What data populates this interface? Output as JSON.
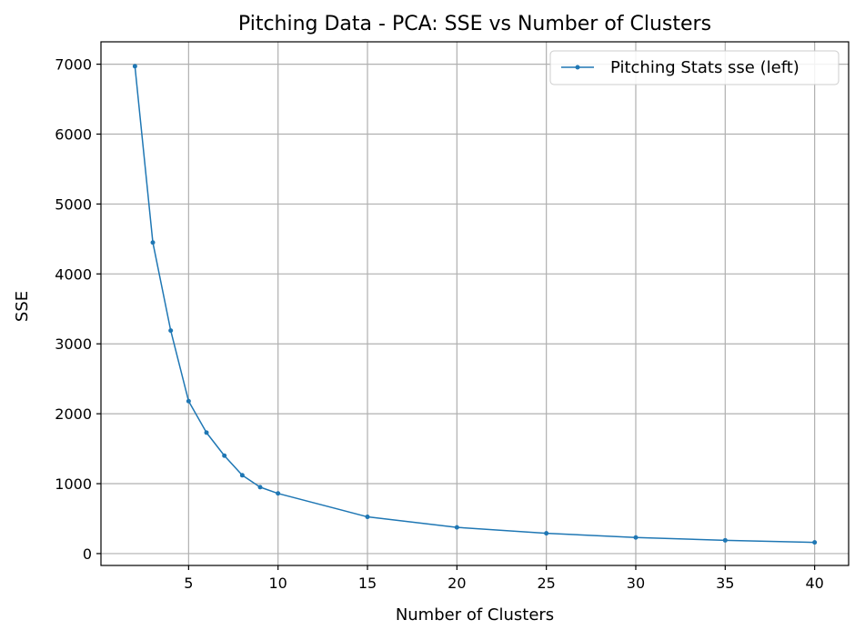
{
  "chart_data": {
    "type": "line",
    "title": "Pitching Data - PCA: SSE vs Number of Clusters",
    "xlabel": "Number of Clusters",
    "ylabel": "SSE",
    "xlim": [
      0.1,
      41.9
    ],
    "ylim": [
      -170,
      7320
    ],
    "xticks": [
      5,
      10,
      15,
      20,
      25,
      30,
      35,
      40
    ],
    "yticks": [
      0,
      1000,
      2000,
      3000,
      4000,
      5000,
      6000,
      7000
    ],
    "grid": true,
    "legend_position": "top-right",
    "series": [
      {
        "name": "Pitching Stats sse (left)",
        "color": "#1f77b4",
        "marker": "point",
        "x": [
          2,
          3,
          4,
          5,
          6,
          7,
          8,
          9,
          10,
          15,
          20,
          25,
          30,
          35,
          40
        ],
        "y": [
          6970,
          4450,
          3190,
          2180,
          1730,
          1400,
          1120,
          950,
          860,
          525,
          375,
          290,
          230,
          190,
          160
        ]
      }
    ]
  }
}
